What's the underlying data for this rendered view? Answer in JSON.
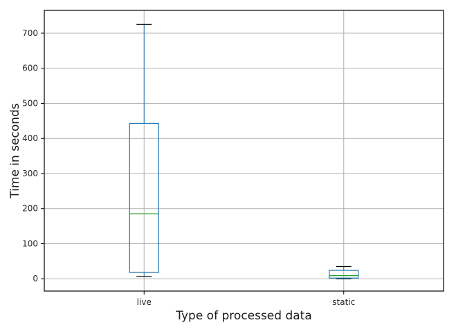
{
  "chart_data": {
    "type": "box",
    "title": "",
    "xlabel": "Type of processed data",
    "ylabel": "Time in seconds",
    "ylim": [
      -35,
      765
    ],
    "yticks": [
      0,
      100,
      200,
      300,
      400,
      500,
      600,
      700
    ],
    "grid": true,
    "colors": {
      "box": "#1f77b4",
      "median": "#2ca02c",
      "whisker": "#1f77b4",
      "cap": "#000000",
      "grid": "#b0b0b0",
      "axes": "#000000"
    },
    "categories": [
      "live",
      "static"
    ],
    "series": [
      {
        "category": "live",
        "whisker_low": 7,
        "q1": 18,
        "median": 185,
        "q3": 443,
        "whisker_high": 725
      },
      {
        "category": "static",
        "whisker_low": 0,
        "q1": 2,
        "median": 9,
        "q3": 24,
        "whisker_high": 35
      }
    ]
  }
}
